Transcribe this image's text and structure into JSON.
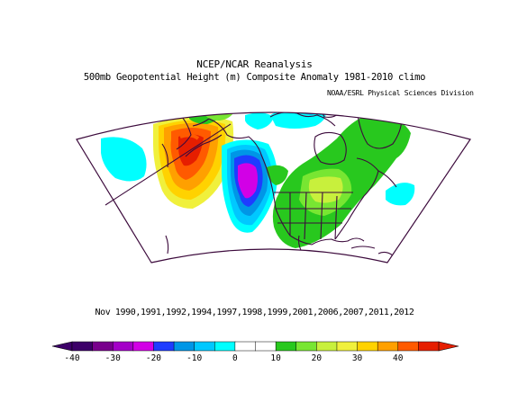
{
  "header": {
    "title": "NCEP/NCAR Reanalysis",
    "subtitle": "500mb Geopotential Height (m) Composite Anomaly 1981-2010 climo",
    "credit": "NOAA/ESRL Physical Sciences Division"
  },
  "composite_dates": "Nov 1990,1991,1992,1994,1997,1998,1999,2001,2006,2007,2011,2012",
  "colorbar": {
    "ticks": [
      "-40",
      "-30",
      "-20",
      "-10",
      "0",
      "10",
      "20",
      "30",
      "40"
    ],
    "colors": [
      "#3c0068",
      "#78008c",
      "#a400c8",
      "#d200e6",
      "#1e3cff",
      "#0096e6",
      "#00c8ff",
      "#00ffff",
      "#ffffff",
      "#ffffff",
      "#28c81e",
      "#78e632",
      "#c8f03c",
      "#f0f03c",
      "#ffd200",
      "#ffa000",
      "#ff5a00",
      "#e61e00"
    ]
  },
  "map": {
    "projection": "Lambert conformal (North America sector)",
    "regions": {
      "negative_core": "Gulf of Alaska / Pacific Northwest coast",
      "positive_core": "central North Pacific",
      "weak_positive": "eastern Canada, United States, Gulf of Mexico"
    }
  }
}
